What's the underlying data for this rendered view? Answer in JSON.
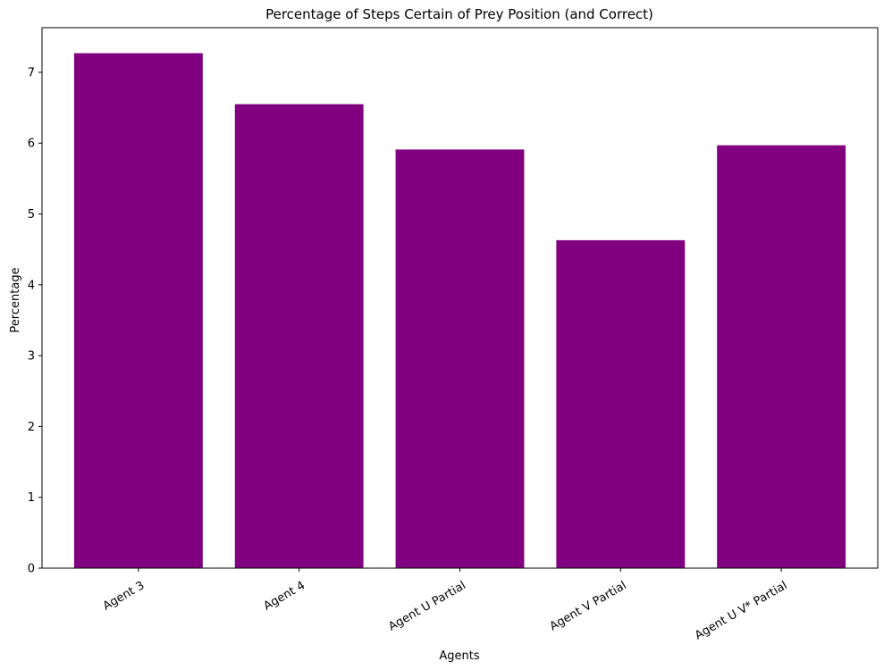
{
  "chart_data": {
    "type": "bar",
    "title": "Percentage of Steps Certain of Prey Position (and Correct)",
    "xlabel": "Agents",
    "ylabel": "Percentage",
    "categories": [
      "Agent 3",
      "Agent 4",
      "Agent U Partial",
      "Agent V Partial",
      "Agent U V* Partial"
    ],
    "values": [
      7.27,
      6.55,
      5.91,
      4.63,
      5.97
    ],
    "ylim": [
      0,
      7.63
    ],
    "yticks": [
      0,
      1,
      2,
      3,
      4,
      5,
      6,
      7
    ],
    "xtick_rotation": 30,
    "grid": false,
    "legend": "none",
    "bar_color": "#800080"
  }
}
